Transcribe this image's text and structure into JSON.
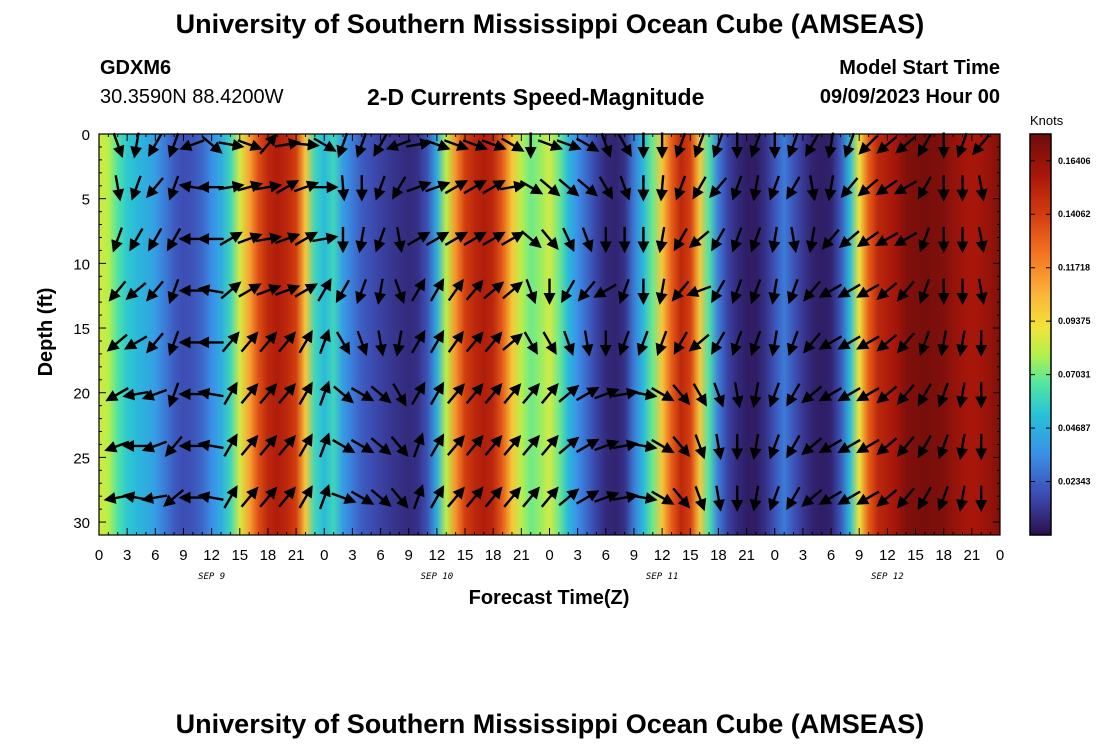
{
  "header": {
    "title": "University of Southern Mississippi Ocean Cube (AMSEAS)",
    "station_id": "GDXM6",
    "station_coords": "30.3590N  88.4200W",
    "chart_title": "2-D Currents Speed-Magnitude",
    "model_start_label": "Model Start Time",
    "model_start_value": "09/09/2023 Hour 00"
  },
  "footer": {
    "title": "University of Southern Mississippi Ocean Cube (AMSEAS)"
  },
  "chart_data": {
    "type": "heatmap",
    "title": "2-D Currents Speed-Magnitude",
    "xlabel": "Forecast Time(Z)",
    "ylabel": "Depth (ft)",
    "x_unit": "hours from model start",
    "xlim": [
      0,
      96
    ],
    "ylim": [
      0,
      31
    ],
    "y_inverted": true,
    "x_ticks": [
      0,
      3,
      6,
      9,
      12,
      15,
      18,
      21,
      24,
      27,
      30,
      33,
      36,
      39,
      42,
      45,
      48,
      51,
      54,
      57,
      60,
      63,
      66,
      69,
      72,
      75,
      78,
      81,
      84,
      87,
      90,
      93,
      96
    ],
    "x_tick_labels": [
      "0",
      "3",
      "6",
      "9",
      "12",
      "15",
      "18",
      "21",
      "0",
      "3",
      "6",
      "9",
      "12",
      "15",
      "18",
      "21",
      "0",
      "3",
      "6",
      "9",
      "12",
      "15",
      "18",
      "21",
      "0",
      "3",
      "6",
      "9",
      "12",
      "15",
      "18",
      "21",
      "0"
    ],
    "y_ticks": [
      0,
      5,
      10,
      15,
      20,
      25,
      30
    ],
    "y_tick_labels": [
      "0",
      "5",
      "10",
      "15",
      "20",
      "25",
      "30"
    ],
    "day_labels": [
      {
        "hour": 12,
        "label": "SEP 9"
      },
      {
        "hour": 36,
        "label": "SEP 10"
      },
      {
        "hour": 60,
        "label": "SEP 11"
      },
      {
        "hour": 84,
        "label": "SEP 12"
      }
    ],
    "colorbar": {
      "unit_label": "Knots",
      "min": 0.0,
      "max": 0.1758,
      "tick_values": [
        0.02343,
        0.04687,
        0.07031,
        0.09375,
        0.11718,
        0.14062,
        0.16406
      ],
      "tick_labels": [
        "0.02343",
        "0.04687",
        "0.07031",
        "0.09375",
        "0.11718",
        "0.14062",
        "0.16406"
      ]
    },
    "speed_time_profile": {
      "hours": [
        0,
        1,
        2,
        3,
        4,
        5,
        6,
        7,
        8,
        9,
        10,
        11,
        12,
        13,
        14,
        15,
        16,
        17,
        18,
        19,
        20,
        21,
        22,
        23,
        24,
        25,
        26,
        27,
        28,
        29,
        30,
        31,
        32,
        33,
        34,
        35,
        36,
        37,
        38,
        39,
        40,
        41,
        42,
        43,
        44,
        45,
        46,
        47,
        48,
        49,
        50,
        51,
        52,
        53,
        54,
        55,
        56,
        57,
        58,
        59,
        60,
        61,
        62,
        63,
        64,
        65,
        66,
        67,
        68,
        69,
        70,
        71,
        72,
        73,
        74,
        75,
        76,
        77,
        78,
        79,
        80,
        81,
        82,
        83,
        84,
        85,
        86,
        87,
        88,
        89,
        90,
        91,
        92,
        93,
        94,
        95,
        96
      ],
      "knots": [
        0.085,
        0.08,
        0.065,
        0.055,
        0.05,
        0.045,
        0.04,
        0.03,
        0.022,
        0.018,
        0.02,
        0.025,
        0.035,
        0.045,
        0.06,
        0.085,
        0.11,
        0.135,
        0.15,
        0.155,
        0.15,
        0.14,
        0.1,
        0.06,
        0.05,
        0.06,
        0.04,
        0.03,
        0.022,
        0.018,
        0.015,
        0.012,
        0.01,
        0.008,
        0.01,
        0.02,
        0.045,
        0.08,
        0.115,
        0.14,
        0.15,
        0.155,
        0.15,
        0.13,
        0.1,
        0.08,
        0.07,
        0.075,
        0.085,
        0.07,
        0.05,
        0.035,
        0.025,
        0.015,
        0.008,
        0.006,
        0.01,
        0.03,
        0.05,
        0.07,
        0.1,
        0.13,
        0.15,
        0.14,
        0.1,
        0.065,
        0.03,
        0.015,
        0.008,
        0.004,
        0.004,
        0.01,
        0.02,
        0.03,
        0.02,
        0.012,
        0.006,
        0.004,
        0.006,
        0.02,
        0.05,
        0.09,
        0.13,
        0.15,
        0.155,
        0.16,
        0.17,
        0.172,
        0.173,
        0.172,
        0.17,
        0.165,
        0.16,
        0.158,
        0.16,
        0.165,
        0.17
      ]
    },
    "vector_hours": [
      2,
      4,
      6,
      8,
      10,
      12,
      14,
      16,
      18,
      20,
      22,
      24,
      26,
      28,
      30,
      32,
      34,
      36,
      38,
      40,
      42,
      44,
      46,
      48,
      50,
      52,
      54,
      56,
      58,
      60,
      62,
      64,
      66,
      68,
      70,
      72,
      74,
      76,
      78,
      80,
      82,
      84,
      86,
      88,
      90,
      92,
      94
    ],
    "vector_depths_ft": [
      0.5,
      3.8,
      7.8,
      11.8,
      15.8,
      19.8,
      23.8,
      27.8
    ],
    "vector_direction_deg_cw_from_north": [
      [
        160,
        190,
        210,
        200,
        250,
        130,
        100,
        110,
        40,
        80,
        95,
        120,
        200,
        200,
        210,
        250,
        80,
        110,
        110,
        110,
        110,
        120,
        180,
        110,
        110,
        120,
        160,
        150,
        180,
        180,
        200,
        200,
        200,
        180,
        200,
        180,
        200,
        210,
        190,
        200,
        225,
        230,
        230,
        210,
        180,
        200,
        220
      ],
      [
        170,
        200,
        220,
        200,
        280,
        270,
        80,
        75,
        80,
        60,
        70,
        90,
        175,
        180,
        200,
        210,
        70,
        70,
        60,
        60,
        60,
        80,
        120,
        130,
        130,
        130,
        150,
        160,
        180,
        185,
        200,
        210,
        220,
        200,
        190,
        200,
        210,
        170,
        190,
        220,
        230,
        235,
        240,
        210,
        180,
        180,
        170
      ],
      [
        200,
        210,
        210,
        210,
        270,
        270,
        60,
        70,
        80,
        70,
        60,
        80,
        180,
        190,
        200,
        170,
        60,
        60,
        60,
        60,
        60,
        60,
        130,
        140,
        155,
        160,
        180,
        180,
        180,
        190,
        210,
        230,
        210,
        200,
        200,
        190,
        170,
        190,
        220,
        230,
        235,
        240,
        240,
        200,
        180,
        180,
        170
      ],
      [
        220,
        230,
        220,
        200,
        270,
        280,
        50,
        60,
        70,
        70,
        60,
        30,
        210,
        200,
        190,
        160,
        30,
        30,
        35,
        40,
        50,
        50,
        160,
        180,
        210,
        220,
        240,
        200,
        180,
        190,
        220,
        250,
        210,
        200,
        200,
        190,
        200,
        220,
        240,
        240,
        240,
        230,
        220,
        200,
        180,
        180,
        170
      ],
      [
        230,
        240,
        220,
        200,
        270,
        270,
        40,
        40,
        40,
        40,
        30,
        20,
        150,
        160,
        170,
        190,
        30,
        30,
        35,
        40,
        40,
        50,
        150,
        150,
        160,
        170,
        180,
        200,
        200,
        200,
        210,
        230,
        210,
        200,
        200,
        190,
        200,
        220,
        240,
        240,
        240,
        230,
        220,
        200,
        190,
        190,
        180
      ],
      [
        240,
        260,
        250,
        200,
        270,
        280,
        30,
        40,
        40,
        40,
        30,
        20,
        130,
        120,
        130,
        150,
        30,
        30,
        40,
        40,
        40,
        40,
        40,
        40,
        50,
        60,
        70,
        80,
        100,
        120,
        140,
        150,
        160,
        170,
        190,
        200,
        210,
        230,
        240,
        240,
        240,
        230,
        220,
        210,
        200,
        190,
        180
      ],
      [
        250,
        270,
        250,
        220,
        270,
        280,
        30,
        40,
        40,
        40,
        30,
        20,
        120,
        120,
        130,
        140,
        20,
        30,
        40,
        40,
        40,
        40,
        40,
        40,
        50,
        60,
        70,
        80,
        100,
        120,
        140,
        160,
        170,
        180,
        190,
        200,
        210,
        230,
        240,
        240,
        240,
        230,
        220,
        210,
        200,
        190,
        180
      ],
      [
        260,
        280,
        260,
        230,
        270,
        280,
        30,
        40,
        40,
        40,
        30,
        20,
        110,
        120,
        130,
        140,
        20,
        30,
        40,
        40,
        40,
        40,
        40,
        40,
        50,
        60,
        70,
        80,
        100,
        120,
        140,
        160,
        170,
        180,
        190,
        200,
        210,
        230,
        240,
        240,
        240,
        230,
        220,
        210,
        200,
        190,
        180
      ]
    ]
  }
}
